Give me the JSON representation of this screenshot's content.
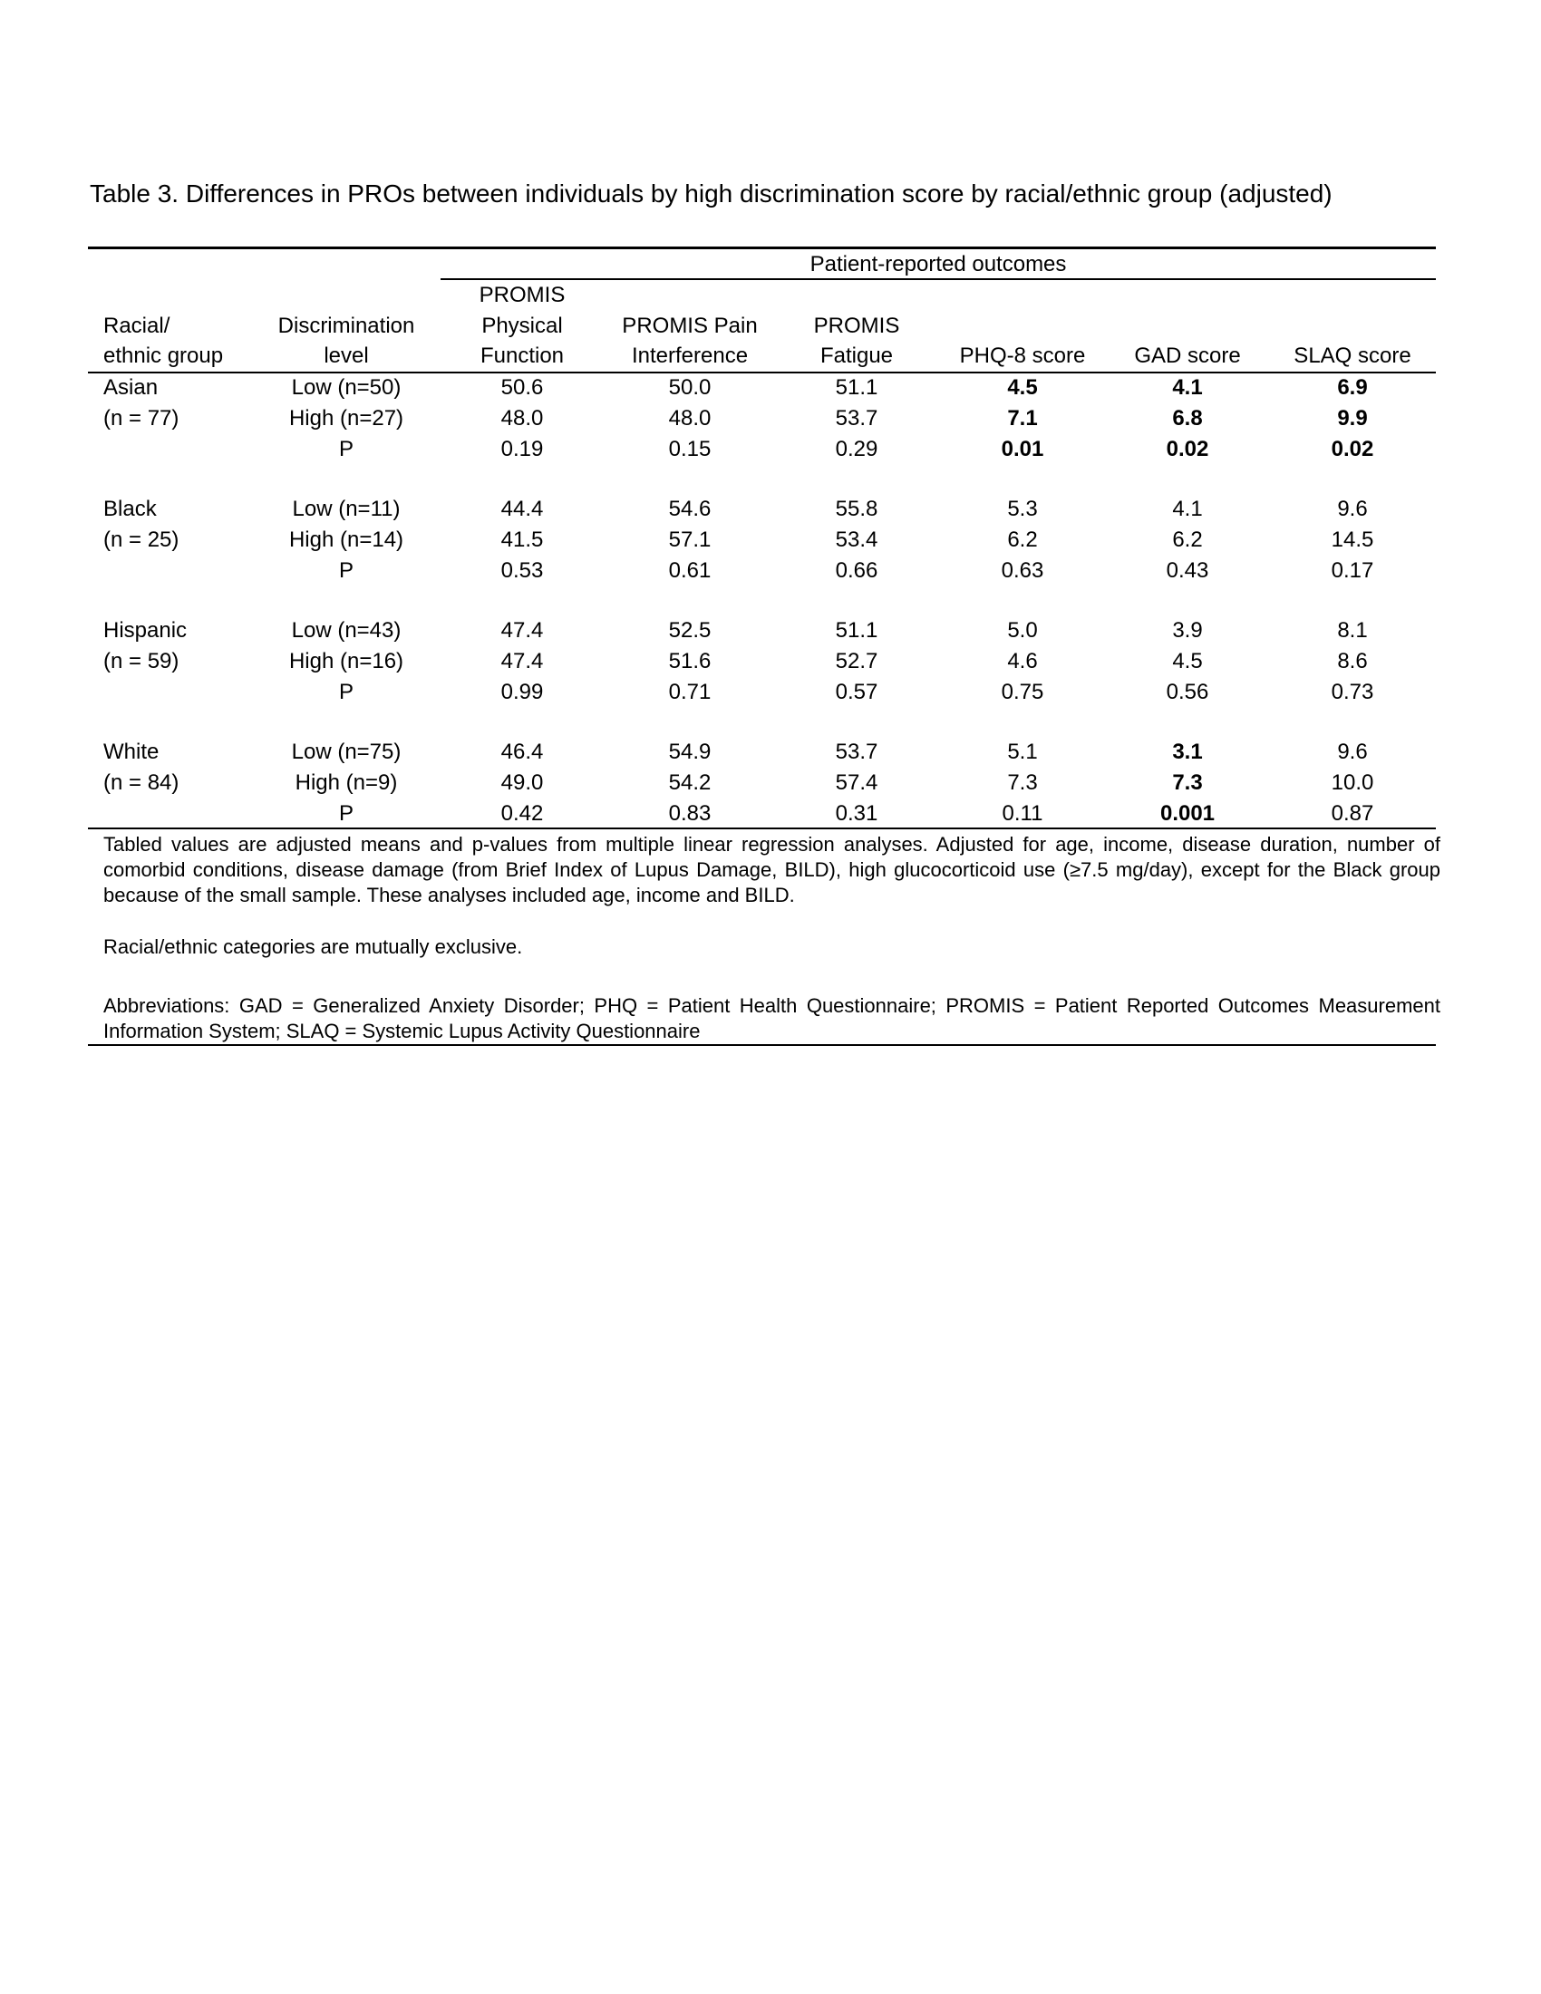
{
  "title": "Table 3. Differences in PROs between individuals by high discrimination score by racial/ethnic group (adjusted)",
  "spanner": "Patient-reported outcomes",
  "headers": [
    [
      "",
      "Racial/",
      "ethnic group"
    ],
    [
      "",
      "Discrimination",
      "level"
    ],
    [
      "PROMIS",
      "Physical",
      "Function"
    ],
    [
      "",
      "PROMIS Pain",
      "Interference"
    ],
    [
      "",
      "PROMIS",
      "Fatigue"
    ],
    [
      "",
      "",
      "PHQ-8 score"
    ],
    [
      "",
      "",
      "GAD score"
    ],
    [
      "",
      "",
      "SLAQ score"
    ]
  ],
  "groups": [
    {
      "name": "Asian",
      "n": "(n = 77)",
      "rows": [
        {
          "level": "Low (n=50)",
          "values": [
            "50.6",
            "50.0",
            "51.1",
            "4.5",
            "4.1",
            "6.9"
          ],
          "bold": [
            false,
            false,
            false,
            true,
            true,
            true
          ]
        },
        {
          "level": "High (n=27)",
          "values": [
            "48.0",
            "48.0",
            "53.7",
            "7.1",
            "6.8",
            "9.9"
          ],
          "bold": [
            false,
            false,
            false,
            true,
            true,
            true
          ]
        },
        {
          "level": "P",
          "values": [
            "0.19",
            "0.15",
            "0.29",
            "0.01",
            "0.02",
            "0.02"
          ],
          "bold": [
            false,
            false,
            false,
            true,
            true,
            true
          ]
        }
      ]
    },
    {
      "name": "Black",
      "n": "(n = 25)",
      "rows": [
        {
          "level": "Low (n=11)",
          "values": [
            "44.4",
            "54.6",
            "55.8",
            "5.3",
            "4.1",
            "9.6"
          ],
          "bold": [
            false,
            false,
            false,
            false,
            false,
            false
          ]
        },
        {
          "level": "High (n=14)",
          "values": [
            "41.5",
            "57.1",
            "53.4",
            "6.2",
            "6.2",
            "14.5"
          ],
          "bold": [
            false,
            false,
            false,
            false,
            false,
            false
          ]
        },
        {
          "level": "P",
          "values": [
            "0.53",
            "0.61",
            "0.66",
            "0.63",
            "0.43",
            "0.17"
          ],
          "bold": [
            false,
            false,
            false,
            false,
            false,
            false
          ]
        }
      ]
    },
    {
      "name": "Hispanic",
      "n": "(n = 59)",
      "rows": [
        {
          "level": "Low (n=43)",
          "values": [
            "47.4",
            "52.5",
            "51.1",
            "5.0",
            "3.9",
            "8.1"
          ],
          "bold": [
            false,
            false,
            false,
            false,
            false,
            false
          ]
        },
        {
          "level": "High (n=16)",
          "values": [
            "47.4",
            "51.6",
            "52.7",
            "4.6",
            "4.5",
            "8.6"
          ],
          "bold": [
            false,
            false,
            false,
            false,
            false,
            false
          ]
        },
        {
          "level": "P",
          "values": [
            "0.99",
            "0.71",
            "0.57",
            "0.75",
            "0.56",
            "0.73"
          ],
          "bold": [
            false,
            false,
            false,
            false,
            false,
            false
          ]
        }
      ]
    },
    {
      "name": "White",
      "n": "(n = 84)",
      "rows": [
        {
          "level": "Low (n=75)",
          "values": [
            "46.4",
            "54.9",
            "53.7",
            "5.1",
            "3.1",
            "9.6"
          ],
          "bold": [
            false,
            false,
            false,
            false,
            true,
            false
          ]
        },
        {
          "level": "High (n=9)",
          "values": [
            "49.0",
            "54.2",
            "57.4",
            "7.3",
            "7.3",
            "10.0"
          ],
          "bold": [
            false,
            false,
            false,
            false,
            true,
            false
          ]
        },
        {
          "level": "P",
          "values": [
            "0.42",
            "0.83",
            "0.31",
            "0.11",
            "0.001",
            "0.87"
          ],
          "bold": [
            false,
            false,
            false,
            false,
            true,
            false
          ]
        }
      ]
    }
  ],
  "footnotes": {
    "adjustment": "Tabled values are adjusted means and p-values from multiple linear regression analyses.  Adjusted for age, income, disease duration, number of comorbid conditions, disease damage (from Brief Index of Lupus Damage, BILD), high glucocorticoid use (≥7.5 mg/day), except for the Black group because of the small sample.  These analyses included age, income and BILD.",
    "categories": "Racial/ethnic categories are mutually exclusive.",
    "abbreviations": "Abbreviations: GAD = Generalized Anxiety Disorder; PHQ = Patient Health Questionnaire; PROMIS = Patient Reported Outcomes Measurement Information System; SLAQ = Systemic Lupus Activity Questionnaire"
  }
}
